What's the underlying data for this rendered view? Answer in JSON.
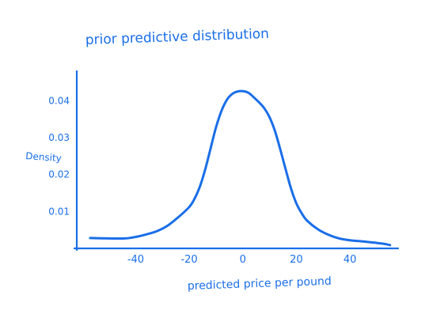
{
  "chart_data": {
    "type": "line",
    "title": "prior predictive distribution",
    "xlabel": "predicted price per pound",
    "ylabel": "Density",
    "x_ticks": [
      -40,
      -20,
      0,
      20,
      40
    ],
    "x_tick_labels": [
      "-40",
      "-20",
      "0",
      "20",
      "40"
    ],
    "y_ticks": [
      0.01,
      0.02,
      0.03,
      0.04
    ],
    "y_tick_labels": [
      "0.01",
      "0.02",
      "0.03",
      "0.04"
    ],
    "xlim": [
      -62,
      58
    ],
    "ylim": [
      0,
      0.048
    ],
    "grid": false,
    "color": "#1a6ee8",
    "series": [
      {
        "x": [
          -57,
          -50,
          -44,
          -40,
          -36,
          -32,
          -28,
          -24,
          -20,
          -18,
          -16,
          -14,
          -12,
          -10,
          -8,
          -6,
          -4,
          -2,
          0,
          2,
          4,
          6,
          8,
          10,
          12,
          14,
          16,
          18,
          20,
          22,
          24,
          28,
          32,
          36,
          40,
          46,
          52,
          55
        ],
        "y": [
          0.0028,
          0.0027,
          0.0027,
          0.0031,
          0.0038,
          0.0047,
          0.0062,
          0.0085,
          0.0112,
          0.0135,
          0.0168,
          0.0215,
          0.0272,
          0.0328,
          0.0372,
          0.0402,
          0.0418,
          0.0425,
          0.0426,
          0.0422,
          0.041,
          0.0396,
          0.038,
          0.0355,
          0.0318,
          0.0268,
          0.0214,
          0.0162,
          0.0122,
          0.0095,
          0.0075,
          0.0052,
          0.0037,
          0.0027,
          0.0022,
          0.0018,
          0.0013,
          0.0009
        ]
      }
    ]
  }
}
